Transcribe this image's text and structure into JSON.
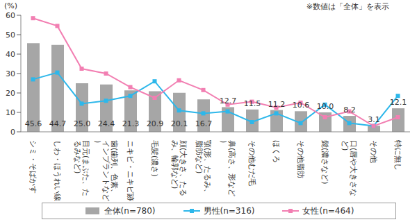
{
  "chart_data": {
    "type": "bar_line",
    "y_label": "(%)",
    "annotation": "※数値は「全体」を表示",
    "categories": [
      "シミ・そばかす",
      "しわ・ほうれい線",
      "目元(まぶた、たるみなど)",
      "歯(歯列、色素、インプラントなど)",
      "ニキビ・ニキビ跡",
      "毛髪(濃さ)",
      "顔(大きさ、たるみ、輪郭など)",
      "顎(形、たるみ、脂肪など)",
      "鼻(高さ、形など)",
      "その他むだ毛",
      "ほくろ",
      "その他脂肪",
      "髭(濃さなど)",
      "口(唇や大きさなど)",
      "その他",
      "特に無し"
    ],
    "series": [
      {
        "name": "全体(n=780)",
        "type": "bar",
        "color": "#a6a6a6",
        "values": [
          45.6,
          44.7,
          25.0,
          24.4,
          21.3,
          20.9,
          20.1,
          16.7,
          12.7,
          11.5,
          11.2,
          10.6,
          10.0,
          8.2,
          3.1,
          12.1
        ],
        "value_labels": [
          "45.6",
          "44.7",
          "25.0",
          "24.4",
          "21.3",
          "20.9",
          "20.1",
          "16.7",
          "12.7",
          "11.5",
          "11.2",
          "10.6",
          "10.0",
          "8.2",
          "3.1",
          "12.1"
        ]
      },
      {
        "name": "男性(n=316)",
        "type": "line",
        "color": "#2db7ea",
        "marker": "square",
        "values": [
          27,
          30.5,
          14.5,
          16,
          18.5,
          26,
          11,
          9.5,
          10.5,
          5,
          9.5,
          4.5,
          14,
          4.5,
          3,
          18.5
        ]
      },
      {
        "name": "女性(n=464)",
        "type": "line",
        "color": "#f27fb2",
        "marker": "square",
        "values": [
          58.5,
          54.5,
          32.5,
          30,
          23,
          17.5,
          26.5,
          21.5,
          14,
          15.5,
          12.5,
          15,
          7.5,
          10.5,
          3,
          7.5
        ]
      }
    ],
    "ylim": [
      0,
      60
    ],
    "yticks": [
      0,
      10,
      20,
      30,
      40,
      50,
      60
    ],
    "grid": false,
    "data_labels": true,
    "legend": "bottom"
  }
}
